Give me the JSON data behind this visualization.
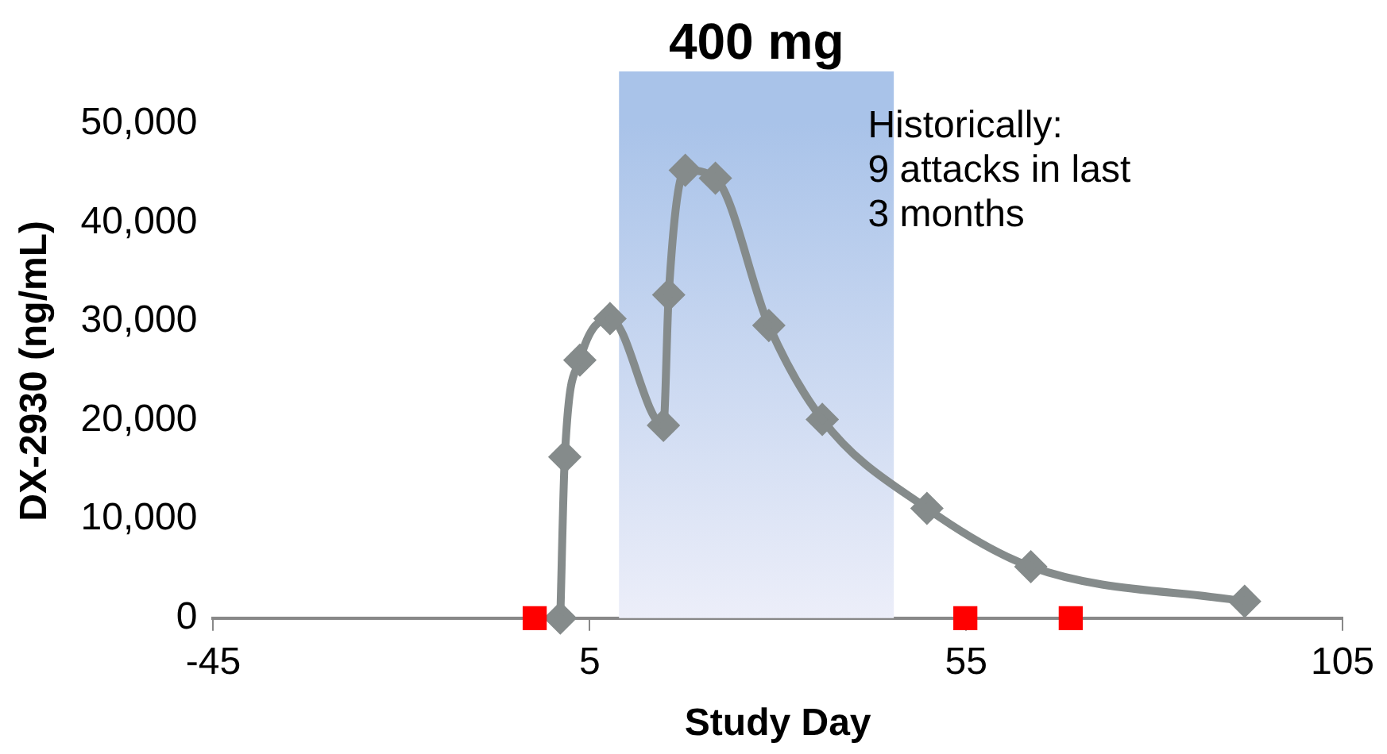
{
  "chart_data": {
    "type": "line",
    "xlabel": "Study Day",
    "ylabel": "DX-2930 (ng/mL)",
    "xlim": [
      -45,
      105
    ],
    "xticks": [
      -45,
      5,
      55,
      105
    ],
    "ylim": [
      0,
      50000
    ],
    "yticks": [
      {
        "value": 0,
        "label": "0"
      },
      {
        "value": 10000,
        "label": "10,000"
      },
      {
        "value": 20000,
        "label": "20,000"
      },
      {
        "value": 30000,
        "label": "30,000"
      },
      {
        "value": 40000,
        "label": "40,000"
      },
      {
        "value": 50000,
        "label": "50,000"
      }
    ],
    "grid": false,
    "legend": false,
    "series": [
      {
        "type": "line",
        "color": "#858b8b",
        "marker": "diamond",
        "line_style": "solid",
        "x": [
          1.1,
          1.7,
          3.7,
          7.7,
          14.8,
          15.5,
          17.7,
          21.7,
          28.8,
          35.9,
          49.8,
          63.6,
          92
        ],
        "values": [
          0,
          16300,
          26100,
          30300,
          19500,
          32700,
          45300,
          44500,
          29600,
          20100,
          11100,
          5200,
          1700
        ]
      },
      {
        "type": "scatter",
        "color": "#ff0000",
        "marker": "square",
        "x": [
          -2.3,
          54.9,
          68.9
        ],
        "values": [
          0,
          0,
          0
        ]
      }
    ],
    "bands": [
      {
        "axis": "x",
        "from": 8.9,
        "to": 45.4,
        "label": "400 mg",
        "color": "#a9c3e9"
      }
    ],
    "annotations": [
      "Historically:\n9 attacks in last\n3 months"
    ]
  }
}
